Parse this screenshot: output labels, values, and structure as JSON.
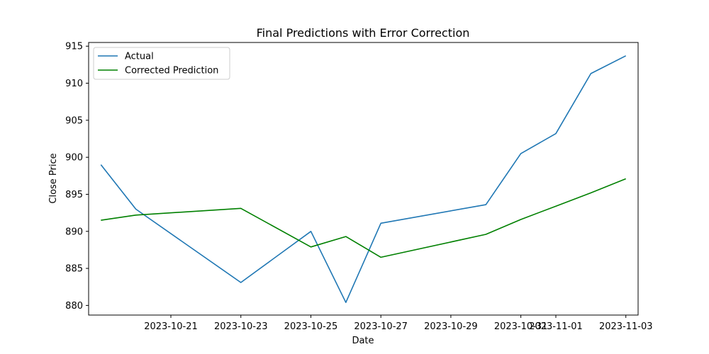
{
  "chart_data": {
    "type": "line",
    "title": "Final Predictions with Error Correction",
    "xlabel": "Date",
    "ylabel": "Close Price",
    "x_dates": [
      "2023-10-19",
      "2023-10-20",
      "2023-10-23",
      "2023-10-25",
      "2023-10-26",
      "2023-10-27",
      "2023-10-30",
      "2023-10-31",
      "2023-11-01",
      "2023-11-02",
      "2023-11-03"
    ],
    "xlim": [
      "2023-10-18",
      "2023-11-03"
    ],
    "ylim": [
      878.7,
      915.5
    ],
    "x_ticks": [
      "2023-10-21",
      "2023-10-23",
      "2023-10-25",
      "2023-10-27",
      "2023-10-29",
      "2023-10-31",
      "2023-11-01",
      "2023-11-03"
    ],
    "y_ticks": [
      880,
      885,
      890,
      895,
      900,
      905,
      910,
      915
    ],
    "grid": false,
    "legend_position": "upper-left",
    "series": [
      {
        "name": "Actual",
        "color": "#1f77b4",
        "values": [
          899.0,
          893.0,
          883.1,
          890.0,
          880.4,
          891.1,
          893.6,
          900.5,
          903.2,
          911.3,
          913.7
        ]
      },
      {
        "name": "Corrected Prediction",
        "color": "#008000",
        "values": [
          891.5,
          892.2,
          893.1,
          887.9,
          889.3,
          886.5,
          889.6,
          891.6,
          893.4,
          895.2,
          897.1
        ]
      }
    ]
  }
}
